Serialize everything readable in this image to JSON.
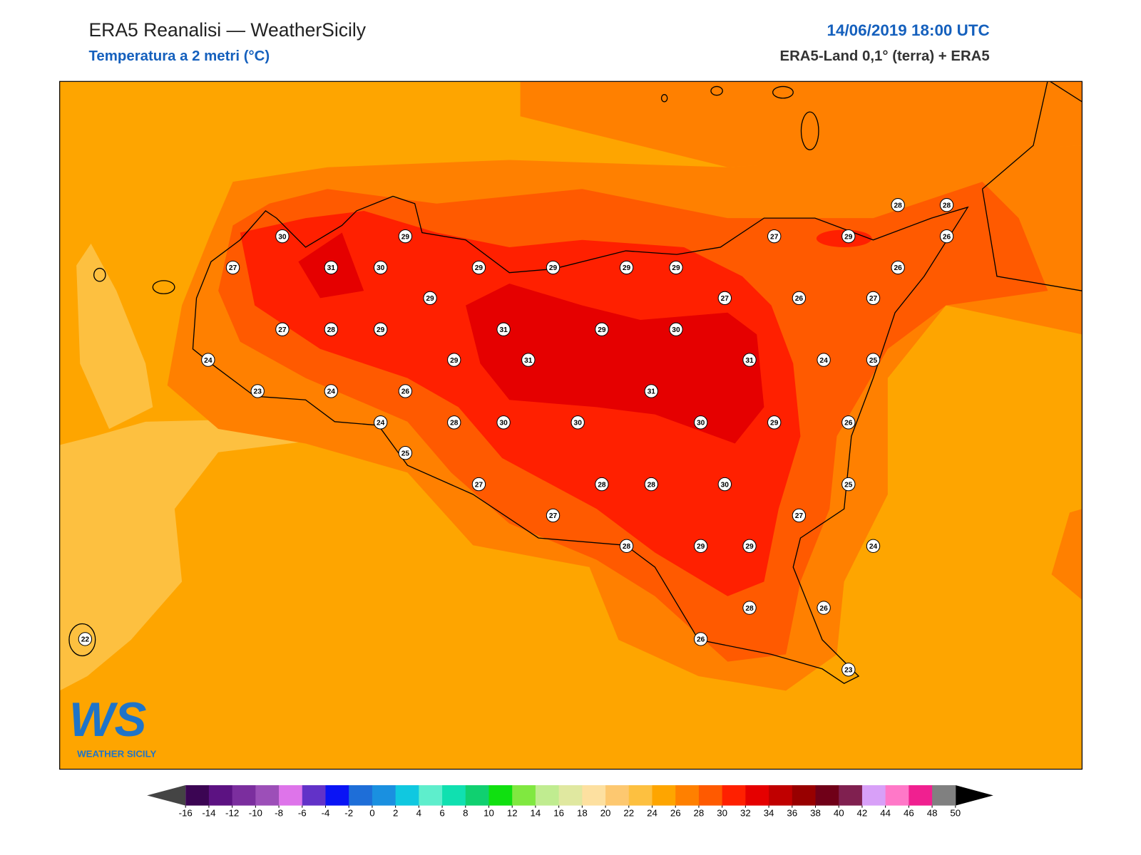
{
  "header": {
    "title": "ERA5 Reanalisi — WeatherSicily",
    "subtitle": "Temperatura a 2 metri (°C)",
    "date": "14/06/2019 18:00 UTC",
    "source": "ERA5-Land 0,1° (terra) + ERA5"
  },
  "stations": [
    30,
    29,
    27,
    31,
    30,
    29,
    29,
    29,
    29,
    29,
    27,
    26,
    27,
    27,
    28,
    29,
    31,
    29,
    30,
    24,
    29,
    31,
    31,
    24,
    25,
    23,
    24,
    26,
    31,
    24,
    28,
    30,
    30,
    30,
    29,
    26,
    25,
    27,
    28,
    28,
    30,
    25,
    27,
    27,
    28,
    29,
    29,
    24,
    28,
    26,
    26,
    22,
    23,
    27,
    29,
    28,
    28,
    26,
    26
  ],
  "logo": {
    "mark": "WS",
    "name": "WEATHER SICILY"
  },
  "colorbar": {
    "ticks": [
      -16,
      -14,
      -12,
      -10,
      -8,
      -6,
      -4,
      -2,
      0,
      2,
      4,
      6,
      8,
      10,
      12,
      14,
      16,
      18,
      20,
      22,
      24,
      26,
      28,
      30,
      32,
      34,
      36,
      38,
      40,
      42,
      44,
      46,
      48,
      50
    ],
    "colors": [
      "#3b0553",
      "#5c1282",
      "#7b2e9e",
      "#9c4fb8",
      "#de74ea",
      "#6232c8",
      "#0a14f5",
      "#1e6ed8",
      "#1a90e0",
      "#10c8e0",
      "#5eeecc",
      "#10e0b0",
      "#10d070",
      "#10e010",
      "#80e840",
      "#c0ec90",
      "#e0e8a0",
      "#fde0a0",
      "#fdc870",
      "#fdc040",
      "#fea500",
      "#ff8000",
      "#ff5a00",
      "#ff2000",
      "#e50000",
      "#c00000",
      "#980000",
      "#700018",
      "#802050",
      "#d8a0f8",
      "#ff78c8",
      "#f02090",
      "#808080"
    ],
    "under_color": "#444444",
    "over_color": "#000000"
  }
}
